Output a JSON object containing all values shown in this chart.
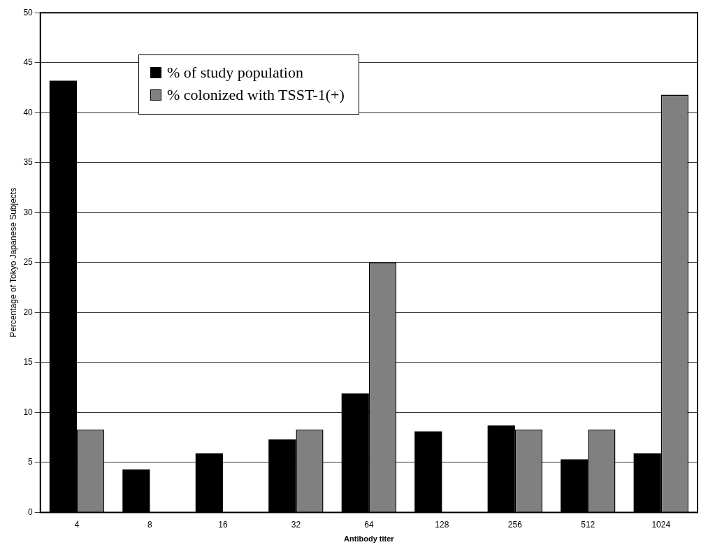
{
  "chart_data": {
    "type": "bar",
    "xlabel": "Antibody titer",
    "ylabel": "Percentage of Tokyo Japanese Subjects",
    "categories": [
      "4",
      "8",
      "16",
      "32",
      "64",
      "128",
      "256",
      "512",
      "1024"
    ],
    "series": [
      {
        "name": "% of study population",
        "color": "#000000",
        "values": [
          43.2,
          4.3,
          5.9,
          7.3,
          11.9,
          8.1,
          8.7,
          5.3,
          5.9
        ]
      },
      {
        "name": "% colonized with TSST-1(+)",
        "color": "#808080",
        "values": [
          8.3,
          0,
          0,
          8.3,
          25.0,
          0,
          8.3,
          8.3,
          41.8
        ]
      }
    ],
    "ylim": [
      0,
      50
    ],
    "yticks": [
      0,
      5,
      10,
      15,
      20,
      25,
      30,
      35,
      40,
      45,
      50
    ],
    "grid": "y",
    "legend": "top left"
  }
}
